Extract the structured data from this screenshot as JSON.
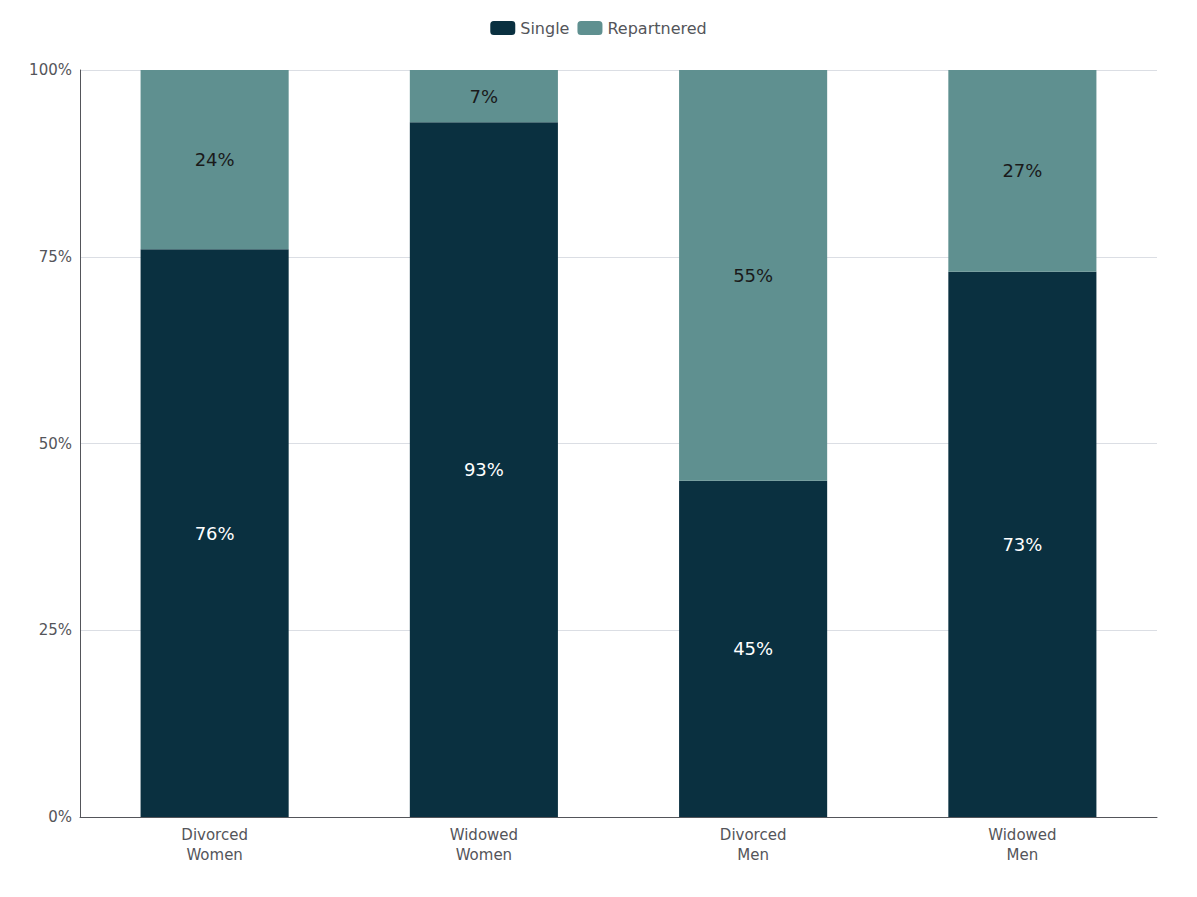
{
  "chart_data": {
    "type": "bar",
    "stacked": true,
    "categories": [
      "Divorced\nWomen",
      "Widowed\nWomen",
      "Divorced\nMen",
      "Widowed\nMen"
    ],
    "series": [
      {
        "name": "Single",
        "color": "#0a3040",
        "values": [
          76,
          93,
          45,
          73
        ],
        "value_labels": [
          "76%",
          "93%",
          "45%",
          "73%"
        ]
      },
      {
        "name": "Repartnered",
        "color": "#5f9090",
        "values": [
          24,
          7,
          55,
          27
        ],
        "value_labels": [
          "24%",
          "7%",
          "55%",
          "27%"
        ]
      }
    ],
    "ylim": [
      0,
      100
    ],
    "yticks": [
      {
        "value": 0,
        "label": "0%"
      },
      {
        "value": 25,
        "label": "25%"
      },
      {
        "value": 50,
        "label": "50%"
      },
      {
        "value": 75,
        "label": "75%"
      },
      {
        "value": 100,
        "label": "100%"
      }
    ],
    "grid": true,
    "legend": "top",
    "data_labels": true
  }
}
